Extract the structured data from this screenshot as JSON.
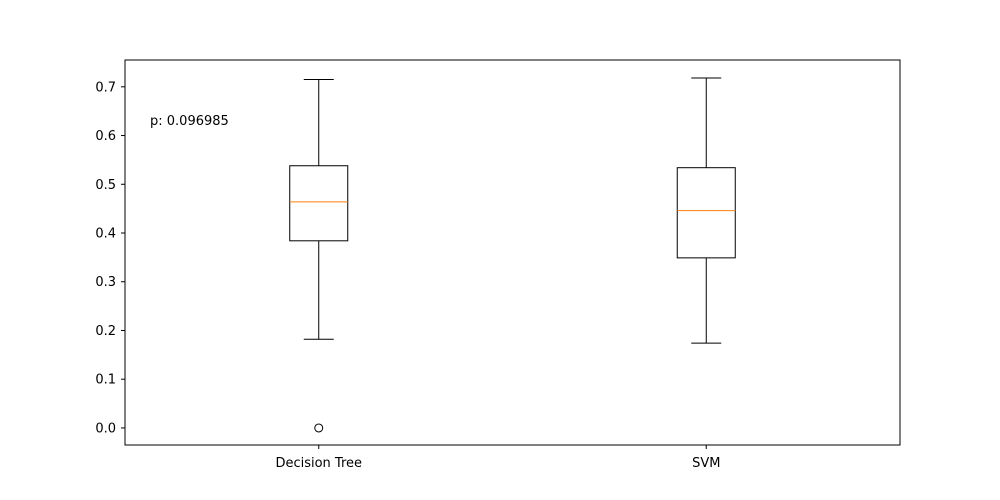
{
  "chart_data": {
    "type": "box",
    "title": "",
    "xlabel": "",
    "ylabel": "",
    "ylim": [
      -0.035,
      0.755
    ],
    "yticks": [
      0.0,
      0.1,
      0.2,
      0.3,
      0.4,
      0.5,
      0.6,
      0.7
    ],
    "ytick_labels": [
      "0.0",
      "0.1",
      "0.2",
      "0.3",
      "0.4",
      "0.5",
      "0.6",
      "0.7"
    ],
    "categories": [
      "Decision Tree",
      "SVM"
    ],
    "boxes": [
      {
        "name": "Decision Tree",
        "whisker_low": 0.182,
        "q1": 0.384,
        "median": 0.464,
        "q3": 0.538,
        "whisker_high": 0.715,
        "outliers": [
          0.0
        ]
      },
      {
        "name": "SVM",
        "whisker_low": 0.174,
        "q1": 0.349,
        "median": 0.446,
        "q3": 0.534,
        "whisker_high": 0.718,
        "outliers": []
      }
    ],
    "annotation": "p: 0.096985",
    "colors": {
      "box": "#000000",
      "median": "#ff7f0e",
      "outlier": "#000000"
    },
    "grid": false
  }
}
